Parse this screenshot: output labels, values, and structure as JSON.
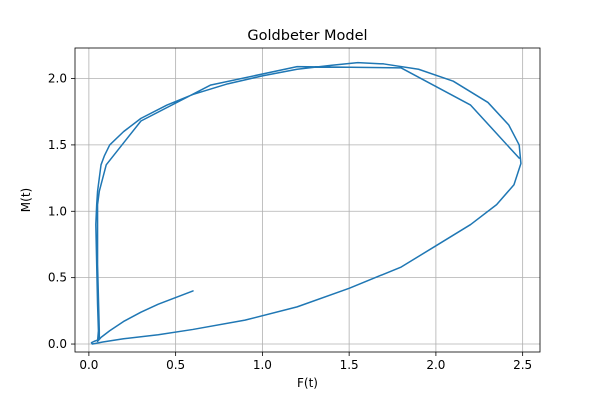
{
  "chart_data": {
    "type": "line",
    "title": "Goldbeter Model",
    "xlabel": "F(t)",
    "ylabel": "M(t)",
    "xlim": [
      -0.08,
      2.6
    ],
    "ylim": [
      -0.06,
      2.23
    ],
    "xticks": [
      0.0,
      0.5,
      1.0,
      1.5,
      2.0,
      2.5
    ],
    "yticks": [
      0.0,
      0.5,
      1.0,
      1.5,
      2.0
    ],
    "xtick_labels": [
      "0.0",
      "0.5",
      "1.0",
      "1.5",
      "2.0",
      "2.5"
    ],
    "ytick_labels": [
      "0.0",
      "0.5",
      "1.0",
      "1.5",
      "2.0"
    ],
    "grid": true,
    "color": "#1f77b4",
    "series": [
      {
        "x": [
          0.6,
          0.5,
          0.4,
          0.3,
          0.2,
          0.12,
          0.07,
          0.05,
          0.055,
          0.05,
          0.045,
          0.04,
          0.045,
          0.05,
          0.055,
          0.06,
          0.065,
          0.07,
          0.09,
          0.12,
          0.2,
          0.3,
          0.45,
          0.6,
          0.8,
          1.0,
          1.2,
          1.4,
          1.55,
          1.7,
          1.9,
          2.1,
          2.3,
          2.42,
          2.48,
          2.49,
          2.45,
          2.35,
          2.2,
          2.0,
          1.8,
          1.5,
          1.2,
          0.9,
          0.6,
          0.4,
          0.2,
          0.08,
          0.04,
          0.02,
          0.015,
          0.03,
          0.05,
          0.06,
          0.06,
          0.06,
          0.05,
          0.05,
          0.05,
          0.06,
          0.1,
          0.3,
          0.7,
          1.2,
          1.8,
          2.2,
          2.48
        ],
        "y": [
          0.4,
          0.35,
          0.3,
          0.24,
          0.17,
          0.1,
          0.05,
          0.02,
          0.1,
          0.3,
          0.6,
          0.9,
          1.05,
          1.15,
          1.2,
          1.25,
          1.3,
          1.35,
          1.42,
          1.5,
          1.6,
          1.7,
          1.8,
          1.88,
          1.96,
          2.02,
          2.07,
          2.1,
          2.12,
          2.11,
          2.07,
          1.98,
          1.82,
          1.65,
          1.5,
          1.36,
          1.2,
          1.05,
          0.9,
          0.74,
          0.58,
          0.42,
          0.28,
          0.18,
          0.11,
          0.07,
          0.04,
          0.015,
          0.005,
          0.0,
          0.01,
          0.02,
          0.03,
          0.035,
          0.04,
          0.1,
          0.6,
          0.9,
          1.05,
          1.15,
          1.35,
          1.68,
          1.95,
          2.09,
          2.08,
          1.8,
          1.4
        ]
      }
    ]
  }
}
